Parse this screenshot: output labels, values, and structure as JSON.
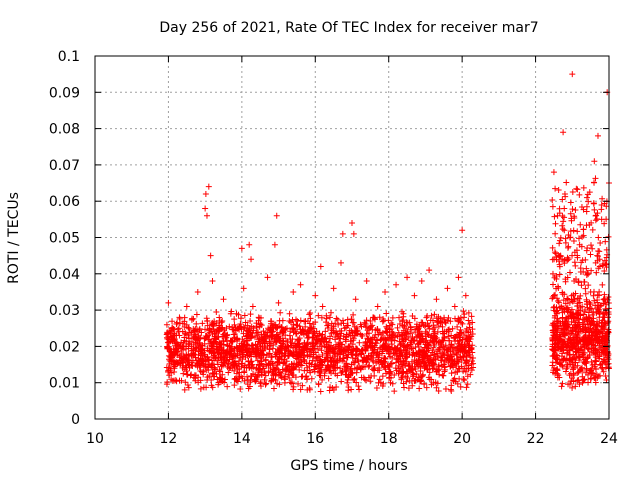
{
  "chart_data": {
    "type": "scatter",
    "title": "Day 256 of 2021, Rate Of TEC Index for receiver mar7",
    "xlabel": "GPS time / hours",
    "ylabel": "ROTI / TECUs",
    "xlim": [
      10,
      24
    ],
    "ylim": [
      0,
      0.1
    ],
    "x_ticks": [
      "10",
      "12",
      "14",
      "16",
      "18",
      "20",
      "22",
      "24"
    ],
    "y_ticks": [
      "0",
      "0.01",
      "0.02",
      "0.03",
      "0.04",
      "0.05",
      "0.06",
      "0.07",
      "0.08",
      "0.09",
      "0.1"
    ],
    "grid": true,
    "marker": "+",
    "color": "#ff0000",
    "series": [
      {
        "name": "ROTI",
        "points": [
          [
            12.0,
            0.032
          ],
          [
            12.1,
            0.022
          ],
          [
            12.2,
            0.015
          ],
          [
            12.3,
            0.028
          ],
          [
            12.4,
            0.019
          ],
          [
            12.5,
            0.031
          ],
          [
            12.6,
            0.012
          ],
          [
            12.7,
            0.024
          ],
          [
            12.8,
            0.035
          ],
          [
            12.9,
            0.018
          ],
          [
            13.0,
            0.058
          ],
          [
            13.02,
            0.062
          ],
          [
            13.05,
            0.056
          ],
          [
            13.1,
            0.064
          ],
          [
            13.15,
            0.045
          ],
          [
            13.2,
            0.038
          ],
          [
            13.3,
            0.021
          ],
          [
            13.4,
            0.027
          ],
          [
            13.5,
            0.033
          ],
          [
            13.6,
            0.016
          ],
          [
            13.7,
            0.029
          ],
          [
            13.8,
            0.011
          ],
          [
            13.9,
            0.025
          ],
          [
            14.0,
            0.047
          ],
          [
            14.05,
            0.036
          ],
          [
            14.1,
            0.019
          ],
          [
            14.2,
            0.048
          ],
          [
            14.25,
            0.044
          ],
          [
            14.3,
            0.031
          ],
          [
            14.4,
            0.014
          ],
          [
            14.5,
            0.026
          ],
          [
            14.6,
            0.022
          ],
          [
            14.7,
            0.039
          ],
          [
            14.8,
            0.017
          ],
          [
            14.9,
            0.048
          ],
          [
            14.95,
            0.056
          ],
          [
            15.0,
            0.032
          ],
          [
            15.1,
            0.024
          ],
          [
            15.2,
            0.013
          ],
          [
            15.3,
            0.029
          ],
          [
            15.4,
            0.035
          ],
          [
            15.5,
            0.019
          ],
          [
            15.6,
            0.037
          ],
          [
            15.7,
            0.021
          ],
          [
            15.8,
            0.027
          ],
          [
            15.9,
            0.015
          ],
          [
            16.0,
            0.034
          ],
          [
            16.1,
            0.023
          ],
          [
            16.15,
            0.042
          ],
          [
            16.2,
            0.031
          ],
          [
            16.3,
            0.017
          ],
          [
            16.4,
            0.028
          ],
          [
            16.5,
            0.036
          ],
          [
            16.6,
            0.012
          ],
          [
            16.7,
            0.043
          ],
          [
            16.75,
            0.051
          ],
          [
            16.8,
            0.025
          ],
          [
            16.9,
            0.019
          ],
          [
            17.0,
            0.054
          ],
          [
            17.05,
            0.051
          ],
          [
            17.1,
            0.033
          ],
          [
            17.2,
            0.021
          ],
          [
            17.3,
            0.016
          ],
          [
            17.4,
            0.038
          ],
          [
            17.5,
            0.027
          ],
          [
            17.6,
            0.014
          ],
          [
            17.7,
            0.031
          ],
          [
            17.8,
            0.022
          ],
          [
            17.9,
            0.035
          ],
          [
            18.0,
            0.018
          ],
          [
            18.1,
            0.026
          ],
          [
            18.2,
            0.037
          ],
          [
            18.3,
            0.013
          ],
          [
            18.4,
            0.029
          ],
          [
            18.5,
            0.039
          ],
          [
            18.6,
            0.021
          ],
          [
            18.7,
            0.034
          ],
          [
            18.8,
            0.016
          ],
          [
            18.9,
            0.038
          ],
          [
            19.0,
            0.024
          ],
          [
            19.1,
            0.041
          ],
          [
            19.2,
            0.019
          ],
          [
            19.3,
            0.033
          ],
          [
            19.4,
            0.027
          ],
          [
            19.5,
            0.015
          ],
          [
            19.6,
            0.036
          ],
          [
            19.7,
            0.023
          ],
          [
            19.8,
            0.031
          ],
          [
            19.9,
            0.039
          ],
          [
            20.0,
            0.052
          ],
          [
            20.05,
            0.028
          ],
          [
            20.1,
            0.034
          ],
          [
            20.2,
            0.019
          ],
          [
            22.5,
            0.068
          ],
          [
            22.55,
            0.025
          ],
          [
            22.6,
            0.056
          ],
          [
            22.7,
            0.031
          ],
          [
            22.75,
            0.079
          ],
          [
            22.8,
            0.062
          ],
          [
            22.9,
            0.044
          ],
          [
            23.0,
            0.095
          ],
          [
            23.05,
            0.038
          ],
          [
            23.1,
            0.029
          ],
          [
            23.2,
            0.048
          ],
          [
            23.3,
            0.017
          ],
          [
            23.4,
            0.061
          ],
          [
            23.5,
            0.035
          ],
          [
            23.6,
            0.071
          ],
          [
            23.7,
            0.078
          ],
          [
            23.75,
            0.042
          ],
          [
            23.8,
            0.055
          ],
          [
            23.9,
            0.021
          ],
          [
            23.95,
            0.09
          ],
          [
            24.0,
            0.065
          ]
        ]
      }
    ],
    "density_bands": [
      {
        "x_start": 11.95,
        "x_end": 20.3,
        "y_min": 0.007,
        "y_max": 0.03,
        "count": 2400
      },
      {
        "x_start": 22.45,
        "x_end": 24.0,
        "y_min": 0.008,
        "y_max": 0.035,
        "count": 700
      },
      {
        "x_start": 22.45,
        "x_end": 24.0,
        "y_min": 0.02,
        "y_max": 0.07,
        "count": 220
      }
    ]
  }
}
